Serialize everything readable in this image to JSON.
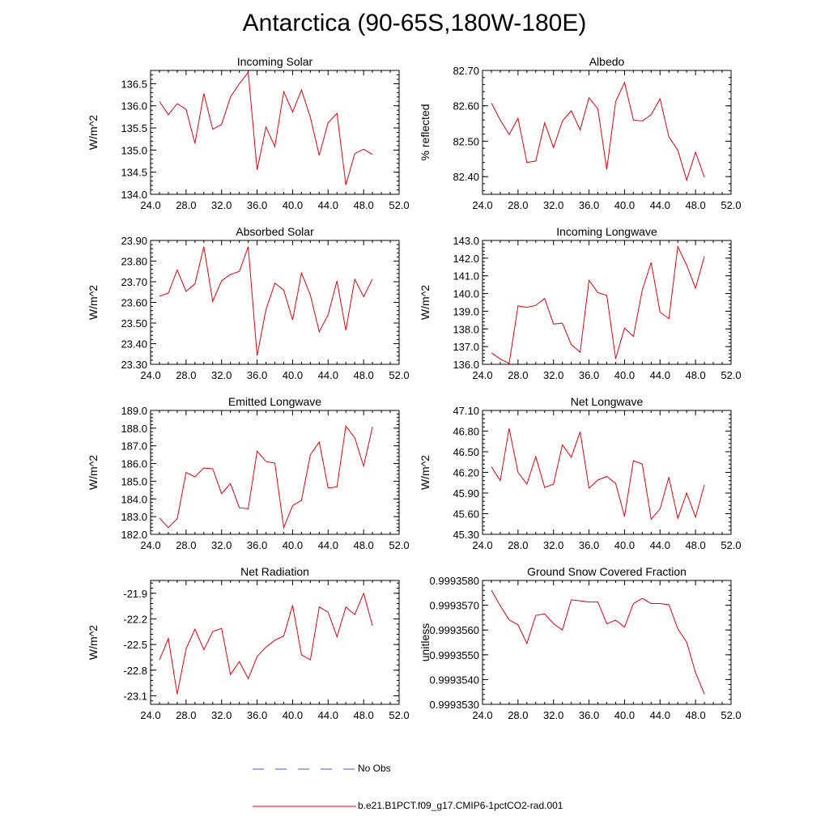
{
  "page": {
    "title": "Antarctica (90-65S,180W-180E)"
  },
  "legend": {
    "items": [
      {
        "label": "No Obs",
        "color": "#3b5bdb",
        "style": "dashed"
      },
      {
        "label": "b.e21.B1PCT.f09_g17.CMIP6-1pctCO2-rad.001",
        "color": "#e8000b",
        "style": "solid"
      }
    ]
  },
  "chart_data": [
    {
      "type": "line",
      "title": "Incoming Solar",
      "ylabel": "W/m^2",
      "xlim": [
        24,
        52
      ],
      "xticks": [
        "24.0",
        "28.0",
        "32.0",
        "36.0",
        "40.0",
        "44.0",
        "48.0",
        "52.0"
      ],
      "ylim": [
        134.0,
        136.8
      ],
      "yticks": [
        134.0,
        134.5,
        135.0,
        135.5,
        136.0,
        136.5
      ],
      "ytick_labels": [
        "134.0",
        "134.5",
        "135.0",
        "135.5",
        "136.0",
        "136.5"
      ],
      "series": [
        {
          "color": "#e8000b",
          "x": [
            25,
            26,
            27,
            28,
            29,
            30,
            31,
            32,
            33,
            34,
            35,
            36,
            37,
            38,
            39,
            40,
            41,
            42,
            43,
            44,
            45,
            46,
            47,
            48,
            49
          ],
          "y": [
            136.1,
            135.8,
            136.05,
            135.92,
            135.15,
            136.28,
            135.47,
            135.58,
            136.2,
            136.5,
            136.76,
            134.55,
            135.52,
            135.08,
            136.32,
            135.86,
            136.36,
            135.74,
            134.88,
            135.62,
            135.83,
            134.21,
            134.92,
            135.02,
            134.9
          ]
        }
      ]
    },
    {
      "type": "line",
      "title": "Albedo",
      "ylabel": "% reflected",
      "xlim": [
        24,
        52
      ],
      "xticks": [
        "24.0",
        "28.0",
        "32.0",
        "36.0",
        "40.0",
        "44.0",
        "48.0",
        "52.0"
      ],
      "ylim": [
        82.35,
        82.7
      ],
      "yticks": [
        82.4,
        82.5,
        82.6,
        82.7
      ],
      "ytick_labels": [
        "82.40",
        "82.50",
        "82.60",
        "82.70"
      ],
      "series": [
        {
          "color": "#e8000b",
          "x": [
            25,
            26,
            27,
            28,
            29,
            30,
            31,
            32,
            33,
            34,
            35,
            36,
            37,
            38,
            39,
            40,
            41,
            42,
            43,
            44,
            45,
            46,
            47,
            48,
            49
          ],
          "y": [
            82.608,
            82.56,
            82.519,
            82.565,
            82.44,
            82.444,
            82.552,
            82.482,
            82.557,
            82.586,
            82.532,
            82.623,
            82.591,
            82.42,
            82.612,
            82.666,
            82.56,
            82.557,
            82.575,
            82.62,
            82.512,
            82.475,
            82.39,
            82.469,
            82.398
          ]
        }
      ]
    },
    {
      "type": "line",
      "title": "Absorbed Solar",
      "ylabel": "W/m^2",
      "xlim": [
        24,
        52
      ],
      "xticks": [
        "24.0",
        "28.0",
        "32.0",
        "36.0",
        "40.0",
        "44.0",
        "48.0",
        "52.0"
      ],
      "ylim": [
        23.3,
        23.9
      ],
      "yticks": [
        23.3,
        23.4,
        23.5,
        23.6,
        23.7,
        23.8,
        23.9
      ],
      "ytick_labels": [
        "23.30",
        "23.40",
        "23.50",
        "23.60",
        "23.70",
        "23.80",
        "23.90"
      ],
      "series": [
        {
          "color": "#e8000b",
          "x": [
            25,
            26,
            27,
            28,
            29,
            30,
            31,
            32,
            33,
            34,
            35,
            36,
            37,
            38,
            39,
            40,
            41,
            42,
            43,
            44,
            45,
            46,
            47,
            48,
            49
          ],
          "y": [
            23.63,
            23.645,
            23.757,
            23.653,
            23.69,
            23.87,
            23.605,
            23.705,
            23.735,
            23.75,
            23.87,
            23.342,
            23.565,
            23.693,
            23.66,
            23.515,
            23.742,
            23.635,
            23.458,
            23.54,
            23.704,
            23.465,
            23.712,
            23.628,
            23.713
          ]
        }
      ]
    },
    {
      "type": "line",
      "title": "Incoming Longwave",
      "ylabel": "W/m^2",
      "xlim": [
        24,
        52
      ],
      "xticks": [
        "24.0",
        "28.0",
        "32.0",
        "36.0",
        "40.0",
        "44.0",
        "48.0",
        "52.0"
      ],
      "ylim": [
        136.0,
        143.0
      ],
      "yticks": [
        136,
        137,
        138,
        139,
        140,
        141,
        142,
        143
      ],
      "ytick_labels": [
        "136.0",
        "137.0",
        "138.0",
        "139.0",
        "140.0",
        "141.0",
        "142.0",
        "143.0"
      ],
      "series": [
        {
          "color": "#e8000b",
          "x": [
            25,
            26,
            27,
            28,
            29,
            30,
            31,
            32,
            33,
            34,
            35,
            36,
            37,
            38,
            39,
            40,
            41,
            42,
            43,
            44,
            45,
            46,
            47,
            48,
            49
          ],
          "y": [
            136.65,
            136.3,
            136.05,
            139.3,
            139.22,
            139.33,
            139.72,
            138.28,
            138.32,
            137.12,
            136.68,
            140.75,
            140.05,
            139.9,
            136.32,
            138.05,
            137.58,
            140.2,
            141.75,
            138.95,
            138.58,
            142.65,
            141.6,
            140.3,
            142.1
          ]
        }
      ]
    },
    {
      "type": "line",
      "title": "Emitted Longwave",
      "ylabel": "W/m^2",
      "xlim": [
        24,
        52
      ],
      "xticks": [
        "24.0",
        "28.0",
        "32.0",
        "36.0",
        "40.0",
        "44.0",
        "48.0",
        "52.0"
      ],
      "ylim": [
        182.0,
        189.0
      ],
      "yticks": [
        182,
        183,
        184,
        185,
        186,
        187,
        188,
        189
      ],
      "ytick_labels": [
        "182.0",
        "183.0",
        "184.0",
        "185.0",
        "186.0",
        "187.0",
        "188.0",
        "189.0"
      ],
      "series": [
        {
          "color": "#e8000b",
          "x": [
            25,
            26,
            27,
            28,
            29,
            30,
            31,
            32,
            33,
            34,
            35,
            36,
            37,
            38,
            39,
            40,
            41,
            42,
            43,
            44,
            45,
            46,
            47,
            48,
            49
          ],
          "y": [
            182.92,
            182.38,
            182.88,
            185.5,
            185.25,
            185.75,
            185.7,
            184.3,
            184.87,
            183.5,
            183.45,
            186.7,
            186.12,
            186.02,
            182.38,
            183.62,
            183.92,
            186.5,
            187.22,
            184.62,
            184.68,
            188.12,
            187.45,
            185.85,
            188.08
          ]
        }
      ]
    },
    {
      "type": "line",
      "title": "Net Longwave",
      "ylabel": "W/m^2",
      "xlim": [
        24,
        52
      ],
      "xticks": [
        "24.0",
        "28.0",
        "32.0",
        "36.0",
        "40.0",
        "44.0",
        "48.0",
        "52.0"
      ],
      "ylim": [
        45.3,
        47.1
      ],
      "yticks": [
        45.3,
        45.6,
        45.9,
        46.2,
        46.5,
        46.8,
        47.1
      ],
      "ytick_labels": [
        "45.30",
        "45.60",
        "45.90",
        "46.20",
        "46.50",
        "46.80",
        "47.10"
      ],
      "series": [
        {
          "color": "#e8000b",
          "x": [
            25,
            26,
            27,
            28,
            29,
            30,
            31,
            32,
            33,
            34,
            35,
            36,
            37,
            38,
            39,
            40,
            41,
            42,
            43,
            44,
            45,
            46,
            47,
            48,
            49
          ],
          "y": [
            46.28,
            46.08,
            46.84,
            46.2,
            46.03,
            46.43,
            45.98,
            46.03,
            46.6,
            46.42,
            46.79,
            45.97,
            46.09,
            46.14,
            46.04,
            45.56,
            46.37,
            46.32,
            45.52,
            45.67,
            46.13,
            45.53,
            45.9,
            45.55,
            46.02
          ]
        }
      ]
    },
    {
      "type": "line",
      "title": "Net Radiation",
      "ylabel": "W/m^2",
      "xlim": [
        24,
        52
      ],
      "xticks": [
        "24.0",
        "28.0",
        "32.0",
        "36.0",
        "40.0",
        "44.0",
        "48.0",
        "52.0"
      ],
      "ylim": [
        -23.2,
        -21.75
      ],
      "yticks": [
        -23.1,
        -22.8,
        -22.5,
        -22.2,
        -21.9
      ],
      "ytick_labels": [
        "-23.1",
        "-22.8",
        "-22.5",
        "-22.2",
        "-21.9"
      ],
      "series": [
        {
          "color": "#e8000b",
          "x": [
            25,
            26,
            27,
            28,
            29,
            30,
            31,
            32,
            33,
            34,
            35,
            36,
            37,
            38,
            39,
            40,
            41,
            42,
            43,
            44,
            45,
            46,
            47,
            48,
            49
          ],
          "y": [
            -22.68,
            -22.43,
            -23.08,
            -22.55,
            -22.32,
            -22.56,
            -22.35,
            -22.31,
            -22.85,
            -22.7,
            -22.9,
            -22.64,
            -22.53,
            -22.45,
            -22.4,
            -22.04,
            -22.62,
            -22.68,
            -22.06,
            -22.12,
            -22.41,
            -22.06,
            -22.15,
            -21.9,
            -22.28
          ]
        }
      ]
    },
    {
      "type": "line",
      "title": "Ground Snow Covered Fraction",
      "ylabel": "unitless",
      "xlim": [
        24,
        52
      ],
      "xticks": [
        "24.0",
        "28.0",
        "32.0",
        "36.0",
        "40.0",
        "44.0",
        "48.0",
        "52.0"
      ],
      "ylim": [
        0.999353,
        0.999358
      ],
      "yticks": [
        0.999353,
        0.999354,
        0.999355,
        0.999356,
        0.999357,
        0.999358
      ],
      "ytick_labels": [
        "0.9993530",
        "0.9993540",
        "0.9993550",
        "0.9993560",
        "0.9993570",
        "0.9993580"
      ],
      "series": [
        {
          "color": "#e8000b",
          "x": [
            25,
            26,
            27,
            28,
            29,
            30,
            31,
            32,
            33,
            34,
            35,
            36,
            37,
            38,
            39,
            40,
            41,
            42,
            43,
            44,
            45,
            46,
            47,
            48,
            49
          ],
          "y": [
            0.99935761,
            0.99935698,
            0.99935641,
            0.99935621,
            0.99935546,
            0.99935659,
            0.99935665,
            0.99935626,
            0.999356,
            0.99935722,
            0.99935718,
            0.99935713,
            0.99935713,
            0.99935625,
            0.9993564,
            0.99935612,
            0.99935707,
            0.99935728,
            0.99935707,
            0.99935707,
            0.99935702,
            0.99935605,
            0.99935551,
            0.99935428,
            0.99935341
          ]
        }
      ]
    }
  ]
}
